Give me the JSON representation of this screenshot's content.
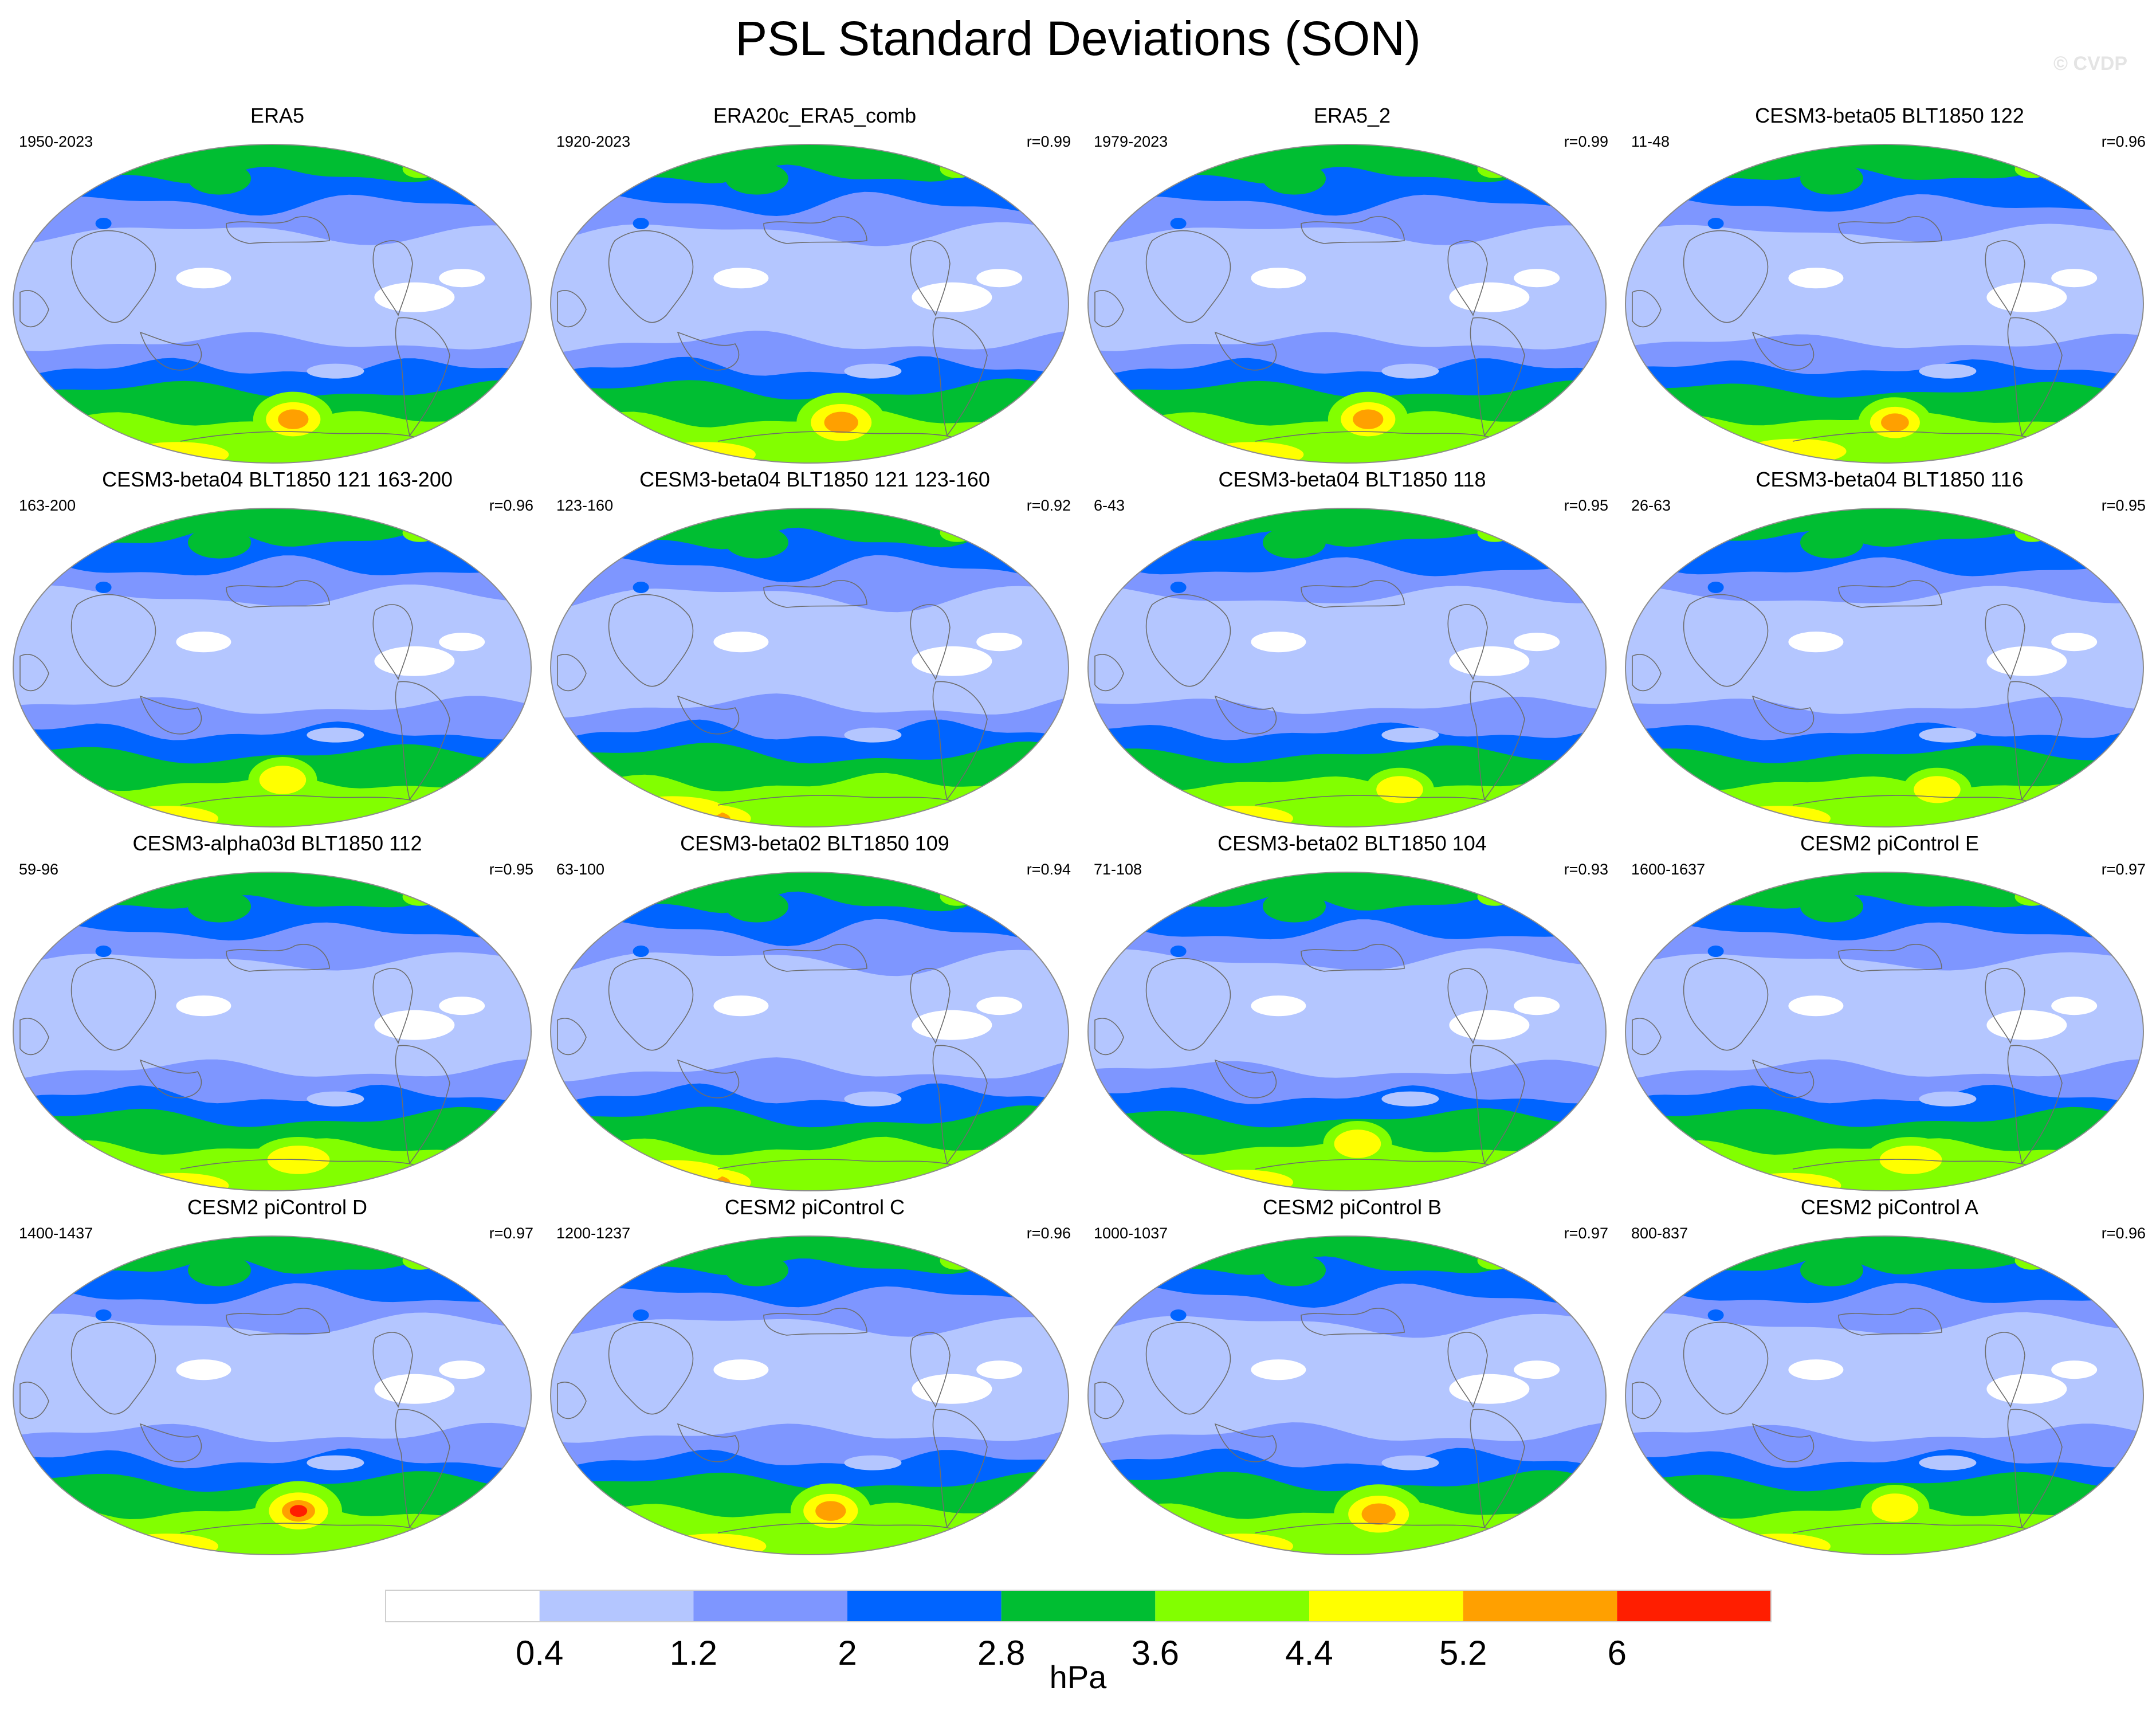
{
  "title": "PSL Standard Deviations (SON)",
  "watermark": "© CVDP",
  "units": "hPa",
  "colorbar": {
    "levels": [
      "0.4",
      "1.2",
      "2",
      "2.8",
      "3.6",
      "4.4",
      "5.2",
      "6"
    ],
    "colors": [
      "#ffffff",
      "#b4c6ff",
      "#7e96ff",
      "#0064ff",
      "#00be32",
      "#82ff00",
      "#ffff00",
      "#ffa000",
      "#ff1e00"
    ]
  },
  "panels": [
    {
      "title": "ERA5",
      "years": "1950-2023",
      "r": "",
      "variant": 0
    },
    {
      "title": "ERA20c_ERA5_comb",
      "years": "1920-2023",
      "r": "r=0.99",
      "variant": 1
    },
    {
      "title": "ERA5_2",
      "years": "1979-2023",
      "r": "r=0.99",
      "variant": 0
    },
    {
      "title": "CESM3-beta05 BLT1850 122",
      "years": "11-48",
      "r": "r=0.96",
      "variant": 2
    },
    {
      "title": "CESM3-beta04 BLT1850 121 163-200",
      "years": "163-200",
      "r": "r=0.96",
      "variant": 3
    },
    {
      "title": "CESM3-beta04 BLT1850 121 123-160",
      "years": "123-160",
      "r": "r=0.92",
      "variant": 4
    },
    {
      "title": "CESM3-beta04 BLT1850 118",
      "years": "6-43",
      "r": "r=0.95",
      "variant": 5
    },
    {
      "title": "CESM3-beta04 BLT1850 116",
      "years": "26-63",
      "r": "r=0.95",
      "variant": 5
    },
    {
      "title": "CESM3-alpha03d BLT1850 112",
      "years": "59-96",
      "r": "r=0.95",
      "variant": 6
    },
    {
      "title": "CESM3-beta02 BLT1850 109",
      "years": "63-100",
      "r": "r=0.94",
      "variant": 4
    },
    {
      "title": "CESM3-beta02 BLT1850 104",
      "years": "71-108",
      "r": "r=0.93",
      "variant": 3
    },
    {
      "title": "CESM2 piControl E",
      "years": "1600-1637",
      "r": "r=0.97",
      "variant": 6
    },
    {
      "title": "CESM2 piControl D",
      "years": "1400-1437",
      "r": "r=0.97",
      "variant": 7
    },
    {
      "title": "CESM2 piControl C",
      "years": "1200-1237",
      "r": "r=0.96",
      "variant": 0
    },
    {
      "title": "CESM2 piControl B",
      "years": "1000-1037",
      "r": "r=0.97",
      "variant": 1
    },
    {
      "title": "CESM2 piControl A",
      "years": "800-837",
      "r": "r=0.96",
      "variant": 3
    }
  ]
}
